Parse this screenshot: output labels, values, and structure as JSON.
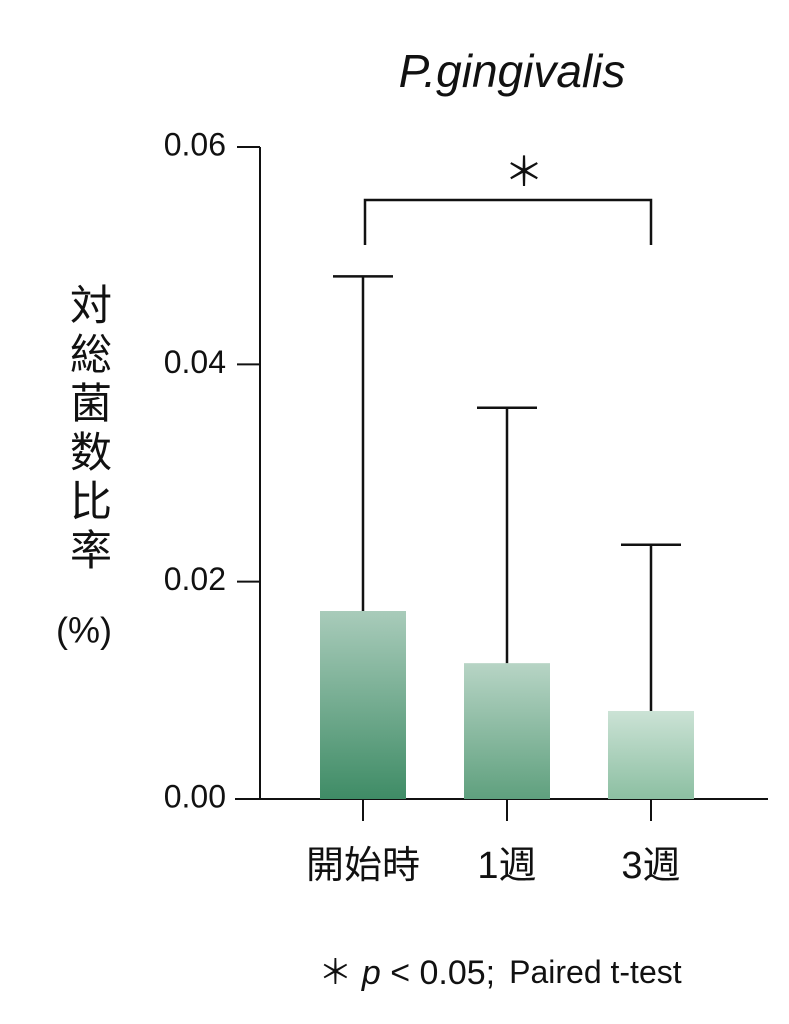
{
  "chart_data": {
    "type": "bar",
    "title": "P.gingivalis",
    "ylabel": "対総菌数比率",
    "ylabel_unit": "(%)",
    "categories": [
      "開始時",
      "1週",
      "3週"
    ],
    "values": [
      0.0173,
      0.0125,
      0.0081
    ],
    "errors": [
      0.0308,
      0.0235,
      0.0153
    ],
    "colors": [
      "#3f8c66",
      "#5fa07e",
      "#8cbfa2"
    ],
    "ylim": [
      0,
      0.06
    ],
    "yticks": [
      {
        "value": 0,
        "label": "0.00"
      },
      0.02,
      0.04,
      0.06
    ],
    "significance": {
      "from": 0,
      "to": 2,
      "label": "＊"
    },
    "footnote": {
      "symbol": "＊",
      "p": "p",
      "condition": "< 0.05;",
      "test": "Paired t-test"
    }
  }
}
